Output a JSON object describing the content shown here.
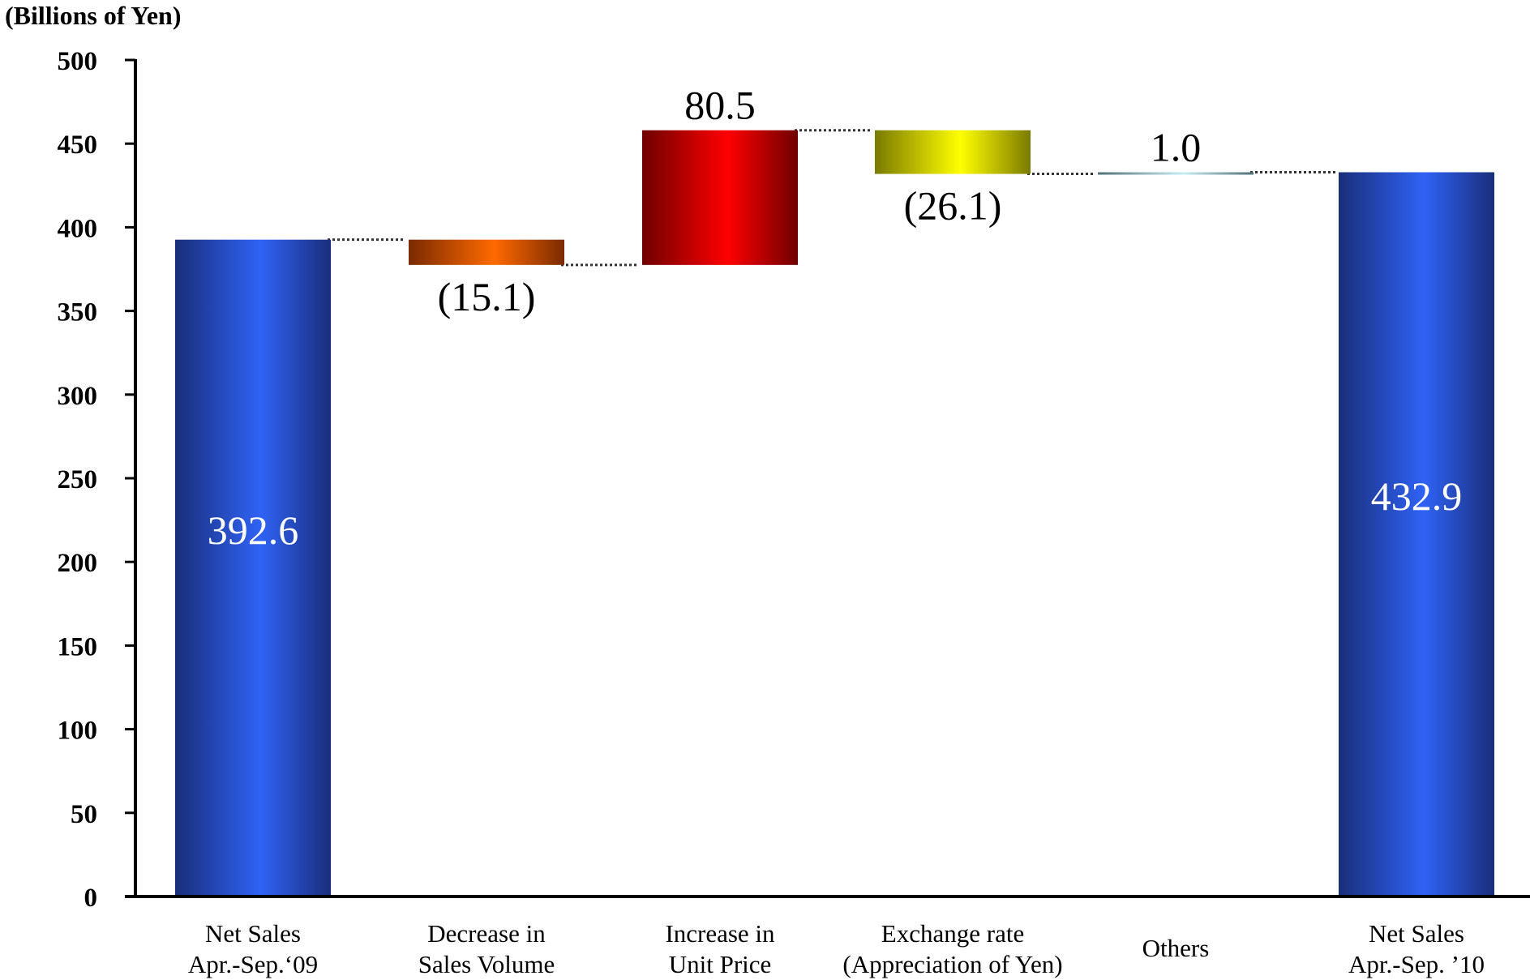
{
  "chart_data": {
    "type": "bar",
    "subtype": "waterfall",
    "unit_label": "(Billions of Yen)",
    "ylim": [
      0,
      500
    ],
    "yticks": [
      "0",
      "50",
      "100",
      "150",
      "200",
      "250",
      "300",
      "350",
      "400",
      "450",
      "500"
    ],
    "grid": false,
    "legend": "none",
    "categories": [
      [
        "Net Sales",
        "Apr.-Sep.‘09"
      ],
      [
        "Decrease in",
        "Sales Volume"
      ],
      [
        "Increase in",
        "Unit Price"
      ],
      [
        "Exchange rate",
        "(Appreciation of Yen)"
      ],
      [
        "Others"
      ],
      [
        "Net Sales",
        "Apr.-Sep. ’10"
      ]
    ],
    "steps": [
      {
        "kind": "total",
        "value": 392.6,
        "label": "392.6"
      },
      {
        "kind": "delta",
        "value": -15.1,
        "label": "(15.1)"
      },
      {
        "kind": "delta",
        "value": 80.5,
        "label": "80.5"
      },
      {
        "kind": "delta",
        "value": -26.1,
        "label": "(26.1)"
      },
      {
        "kind": "delta",
        "value": 1.0,
        "label": "1.0"
      },
      {
        "kind": "total",
        "value": 432.9,
        "label": "432.9"
      }
    ],
    "colors": [
      "#2f62f5",
      "#f06a08",
      "#ff0000",
      "#f5f500",
      "#bfe2ea",
      "#2f62f5"
    ]
  }
}
